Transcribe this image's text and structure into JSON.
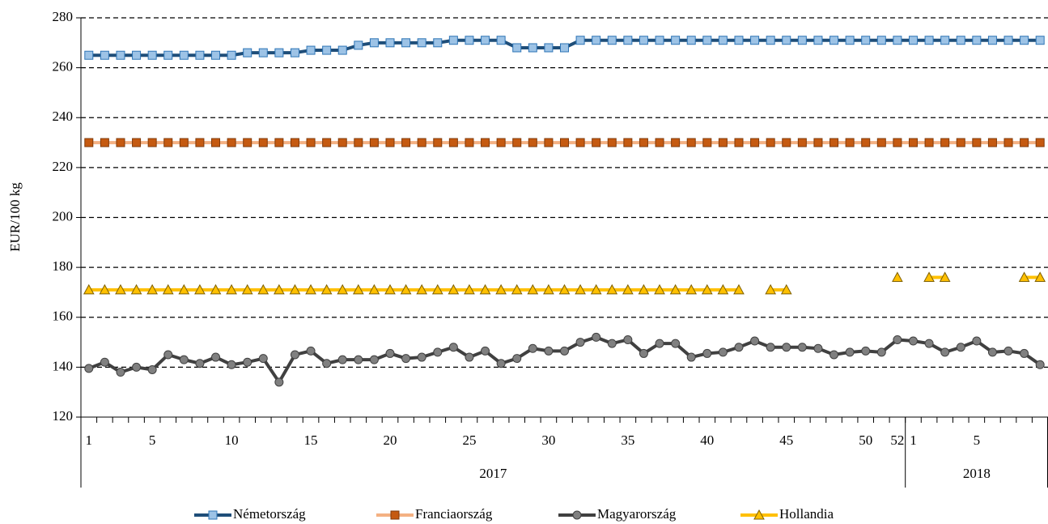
{
  "chart_data": {
    "type": "line",
    "y_label": "EUR/100 kg",
    "categories": [
      "1",
      null,
      null,
      null,
      "5",
      null,
      null,
      null,
      null,
      "10",
      null,
      null,
      null,
      null,
      "15",
      null,
      null,
      null,
      null,
      "20",
      null,
      null,
      null,
      null,
      "25",
      null,
      null,
      null,
      null,
      "30",
      null,
      null,
      null,
      null,
      "35",
      null,
      null,
      null,
      null,
      "40",
      null,
      null,
      null,
      null,
      "45",
      null,
      null,
      null,
      null,
      "50",
      null,
      "52",
      "1",
      null,
      null,
      null,
      "5",
      null,
      null,
      null,
      null
    ],
    "x_groups": [
      {
        "label": "2017",
        "span": 52
      },
      {
        "label": "2018",
        "span": 9
      }
    ],
    "ylim": [
      120,
      280
    ],
    "yticks": [
      120,
      140,
      160,
      180,
      200,
      220,
      240,
      260,
      280
    ],
    "grid": true,
    "legend": "bottom",
    "series": [
      {
        "name": "Németország",
        "color": "#1f4e79",
        "marker": "square",
        "marker_color": "#9dc3e6",
        "values": [
          265,
          265,
          265,
          265,
          265,
          265,
          265,
          265,
          265,
          265,
          266,
          266,
          266,
          266,
          267,
          267,
          267,
          269,
          270,
          270,
          270,
          270,
          270,
          271,
          271,
          271,
          271,
          268,
          268,
          268,
          268,
          271,
          271,
          271,
          271,
          271,
          271,
          271,
          271,
          271,
          271,
          271,
          271,
          271,
          271,
          271,
          271,
          271,
          271,
          271,
          271,
          271,
          271,
          271,
          271,
          271,
          271,
          271,
          271,
          271,
          271
        ]
      },
      {
        "name": "Franciaország",
        "color": "#f4b183",
        "marker": "square",
        "marker_color": "#c55a11",
        "values": [
          230,
          230,
          230,
          230,
          230,
          230,
          230,
          230,
          230,
          230,
          230,
          230,
          230,
          230,
          230,
          230,
          230,
          230,
          230,
          230,
          230,
          230,
          230,
          230,
          230,
          230,
          230,
          230,
          230,
          230,
          230,
          230,
          230,
          230,
          230,
          230,
          230,
          230,
          230,
          230,
          230,
          230,
          230,
          230,
          230,
          230,
          230,
          230,
          230,
          230,
          230,
          230,
          230,
          230,
          230,
          230,
          230,
          230,
          230,
          230,
          230
        ]
      },
      {
        "name": "Magyarország",
        "color": "#404040",
        "marker": "circle",
        "marker_color": "#808080",
        "values": [
          139.5,
          142,
          138,
          140,
          139,
          145,
          143,
          141.5,
          144,
          141,
          142,
          143.5,
          134,
          145,
          146.5,
          141.5,
          143,
          143,
          143,
          145.5,
          143.5,
          144,
          146,
          148,
          144,
          146.5,
          141.5,
          143.5,
          147.5,
          146.5,
          146.5,
          150,
          152,
          149.5,
          151,
          145.5,
          149.5,
          149.5,
          144,
          145.5,
          146,
          148,
          150.5,
          148,
          148,
          148,
          147.5,
          145,
          146,
          146.5,
          146,
          151,
          150.5,
          149.5,
          146,
          148,
          150.5,
          146,
          146.5,
          145.5,
          141
        ]
      },
      {
        "name": "Hollandia",
        "color": "#ffc000",
        "marker": "triangle",
        "marker_color": "#ffc000",
        "values": [
          171,
          171,
          171,
          171,
          171,
          171,
          171,
          171,
          171,
          171,
          171,
          171,
          171,
          171,
          171,
          171,
          171,
          171,
          171,
          171,
          171,
          171,
          171,
          171,
          171,
          171,
          171,
          171,
          171,
          171,
          171,
          171,
          171,
          171,
          171,
          171,
          171,
          171,
          171,
          171,
          171,
          171,
          null,
          171,
          171,
          null,
          null,
          null,
          null,
          null,
          null,
          176,
          null,
          176,
          176,
          null,
          null,
          null,
          null,
          176,
          176
        ]
      }
    ]
  }
}
